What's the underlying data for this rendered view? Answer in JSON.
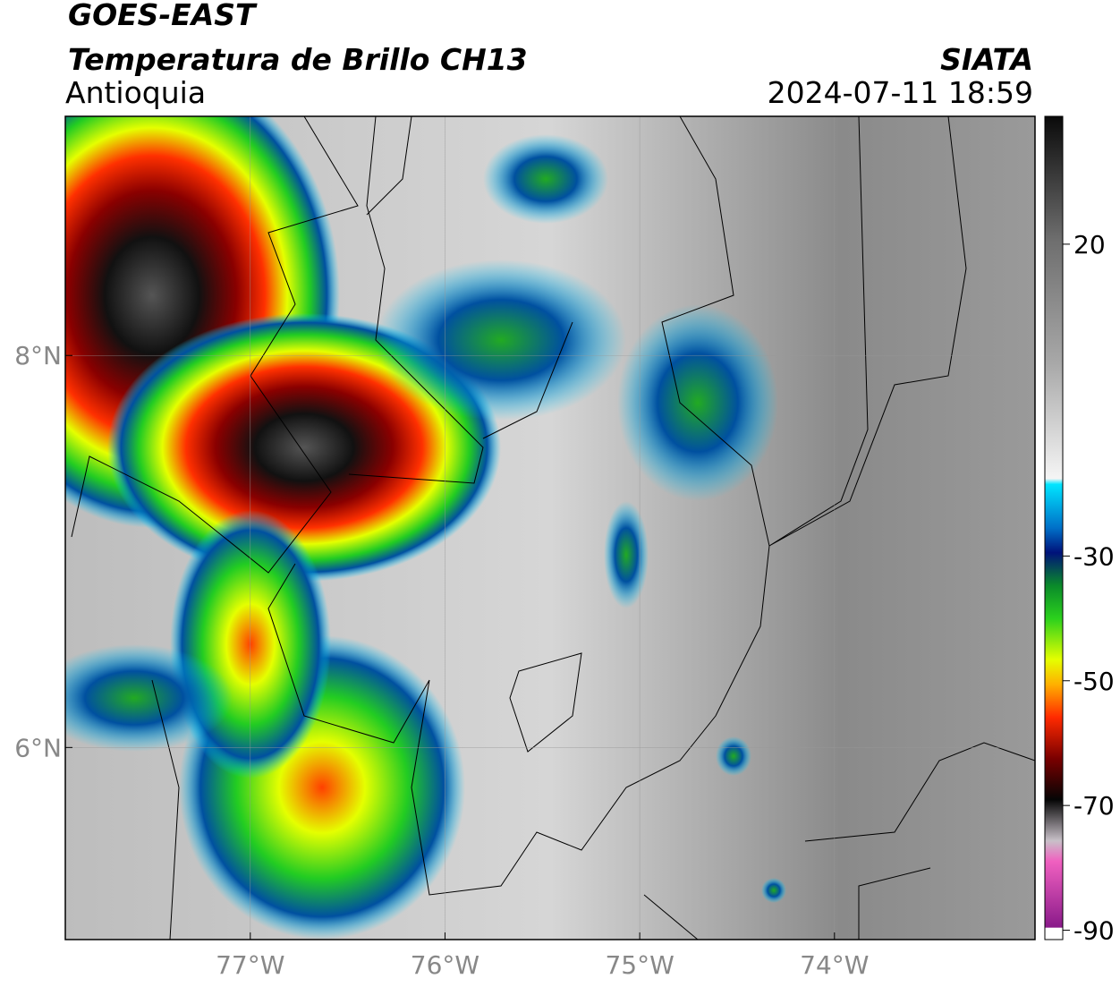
{
  "header": {
    "title": "GOES-EAST",
    "subtitle": "Temperatura de Brillo CH13",
    "region": "Antioquia",
    "source": "SIATA",
    "datetime": "2024-07-11 18:59"
  },
  "map": {
    "lonlim": [
      -77.95,
      -72.97
    ],
    "latlim": [
      5.02,
      9.22
    ],
    "lon_ticks": [
      {
        "value": -77,
        "label": "77°W"
      },
      {
        "value": -76,
        "label": "76°W"
      },
      {
        "value": -75,
        "label": "75°W"
      },
      {
        "value": -74,
        "label": "74°W"
      }
    ],
    "lat_ticks": [
      {
        "value": 8,
        "label": "8°N"
      },
      {
        "value": 6,
        "label": "6°N"
      }
    ]
  },
  "colorbar": {
    "lim": [
      -91.5,
      40.5
    ],
    "ticks": [
      20,
      -30,
      -50,
      -70,
      -90
    ]
  }
}
